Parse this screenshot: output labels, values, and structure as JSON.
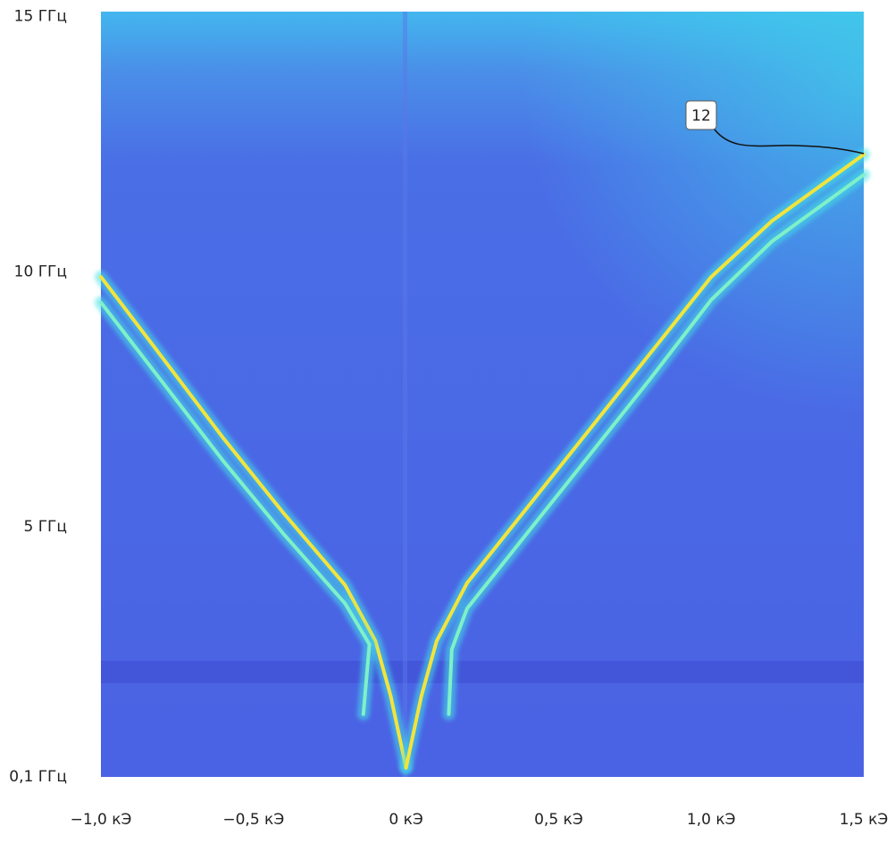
{
  "chart_data": {
    "type": "line",
    "xlim": [
      -1.0,
      1.5
    ],
    "xticks": [
      {
        "value": -1.0,
        "label": "−1,0 кЭ"
      },
      {
        "value": -0.5,
        "label": "−0,5 кЭ"
      },
      {
        "value": 0,
        "label": "0 кЭ"
      },
      {
        "value": 0.5,
        "label": "0,5 кЭ"
      },
      {
        "value": 1.0,
        "label": "1,0 кЭ"
      },
      {
        "value": 1.5,
        "label": "1,5 кЭ"
      }
    ],
    "ylim": [
      0.1,
      15.1
    ],
    "yticks": [
      {
        "value": 0.1,
        "label": "0,1 ГГц"
      },
      {
        "value": 5,
        "label": "5 ГГц"
      },
      {
        "value": 10,
        "label": "10 ГГц"
      },
      {
        "value": 15,
        "label": "15 ГГц"
      }
    ],
    "series": [
      {
        "color": "#f2e43c",
        "x": [
          -1.0,
          -0.8,
          -0.6,
          -0.4,
          -0.2,
          -0.1,
          -0.05,
          0.0
        ],
        "values": [
          9.9,
          8.33,
          6.75,
          5.26,
          3.86,
          2.76,
          1.68,
          0.28
        ]
      },
      {
        "color": "#7ff0c8",
        "x": [
          -1.0,
          -0.8,
          -0.6,
          -0.4,
          -0.2,
          -0.12,
          -0.14
        ],
        "values": [
          9.4,
          7.85,
          6.3,
          4.85,
          3.5,
          2.7,
          1.33
        ]
      },
      {
        "color": "#f2e43c",
        "x": [
          0.0,
          0.05,
          0.1,
          0.2,
          0.4,
          0.6,
          0.8,
          1.0,
          1.2,
          1.5
        ],
        "values": [
          0.28,
          1.68,
          2.76,
          3.9,
          5.4,
          6.9,
          8.4,
          9.9,
          11.0,
          12.3
        ]
      },
      {
        "color": "#7ff0c8",
        "x": [
          0.14,
          0.15,
          0.2,
          0.4,
          0.6,
          0.8,
          1.0,
          1.2,
          1.5
        ],
        "values": [
          1.33,
          2.6,
          3.4,
          4.9,
          6.4,
          7.9,
          9.45,
          10.6,
          11.9
        ]
      }
    ],
    "annotation": {
      "text": "12"
    }
  }
}
